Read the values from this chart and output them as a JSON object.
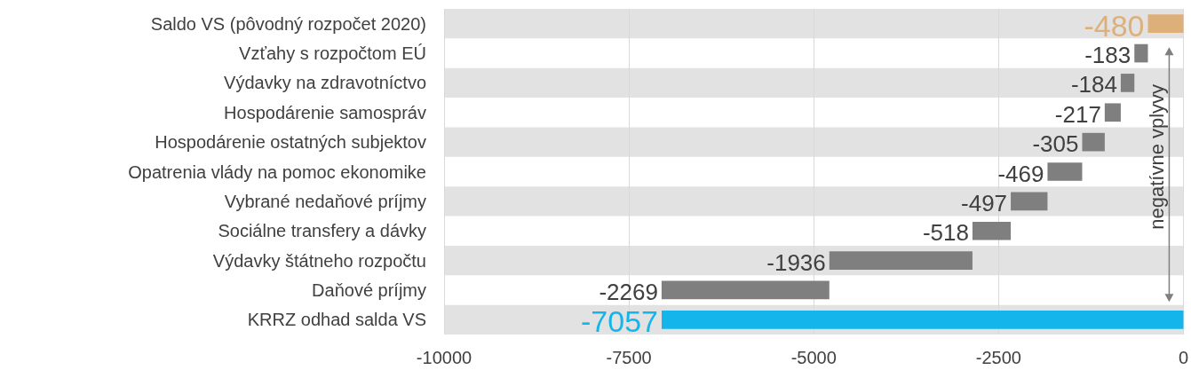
{
  "chart_data": {
    "type": "bar",
    "orientation": "horizontal",
    "categories": [
      "Saldo VS (pôvodný rozpočet 2020)",
      "Vzťahy s rozpočtom EÚ",
      "Výdavky na zdravotníctvo",
      "Hospodárenie samospráv",
      "Hospodárenie ostatných subjektov",
      "Opatrenia vlády na pomoc ekonomike",
      "Vybrané nedaňové príjmy",
      "Sociálne transfery a dávky",
      "Výdavky štátneho rozpočtu",
      "Daňové príjmy",
      "KRRZ odhad salda VS"
    ],
    "values": [
      -480,
      -183,
      -184,
      -217,
      -305,
      -469,
      -497,
      -518,
      -1936,
      -2269,
      -7057
    ],
    "base": [
      0,
      -480,
      -663,
      -847,
      -1064,
      -1369,
      -1838,
      -2335,
      -2853,
      -4789,
      0
    ],
    "colors": [
      "#ddb07a",
      "#7f7f7f",
      "#7f7f7f",
      "#7f7f7f",
      "#7f7f7f",
      "#7f7f7f",
      "#7f7f7f",
      "#7f7f7f",
      "#7f7f7f",
      "#7f7f7f",
      "#13b5ea"
    ],
    "data_labels": true,
    "xlim": [
      -10000,
      0
    ],
    "xticks": [
      -10000,
      -7500,
      -5000,
      -2500,
      0
    ],
    "grid": "x",
    "annotations": [
      "negatívne vplyvy"
    ]
  }
}
